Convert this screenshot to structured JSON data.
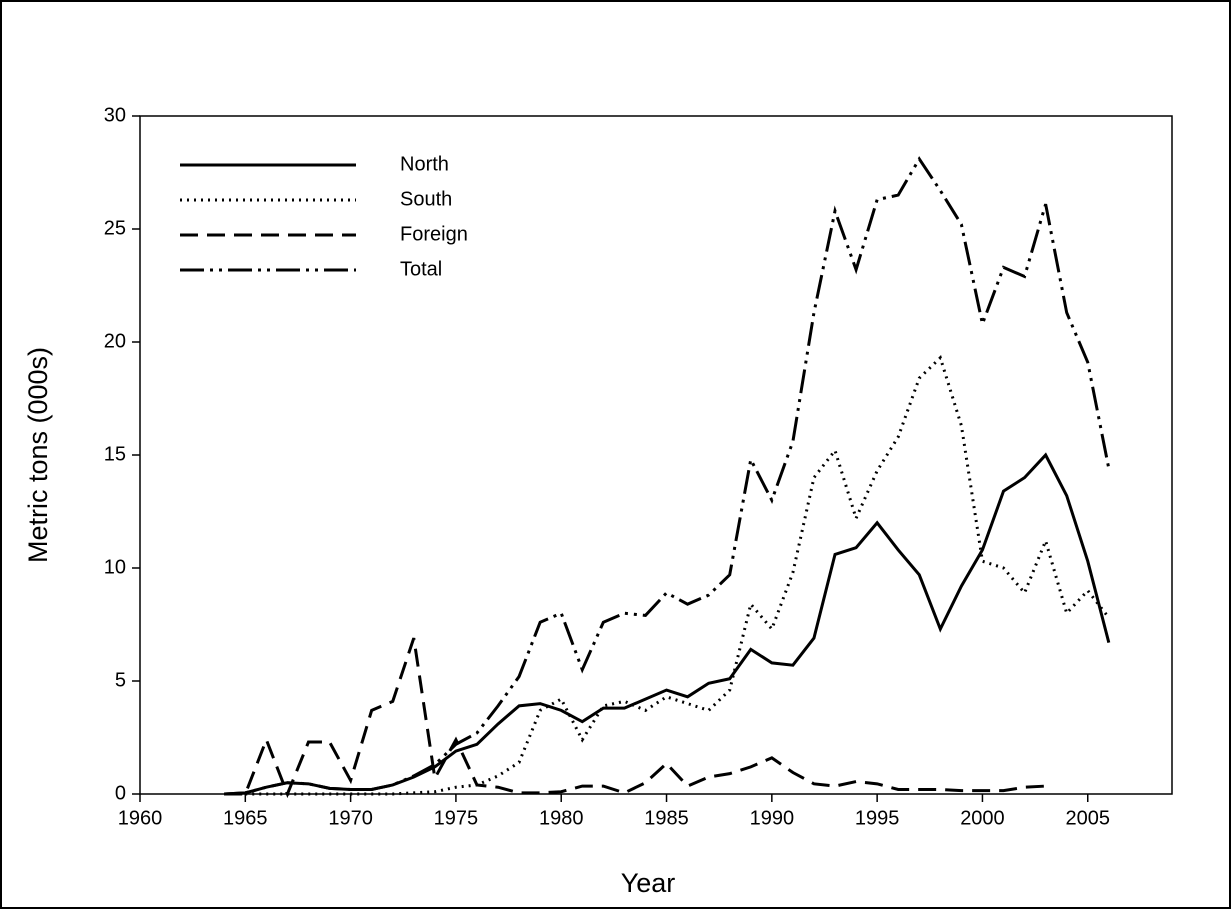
{
  "chart_data": {
    "type": "line",
    "x_label": "Year",
    "y_label": "Metric tons (000s)",
    "x": [
      1964,
      1965,
      1966,
      1967,
      1968,
      1969,
      1970,
      1971,
      1972,
      1973,
      1974,
      1975,
      1976,
      1977,
      1978,
      1979,
      1980,
      1981,
      1982,
      1983,
      1984,
      1985,
      1986,
      1987,
      1988,
      1989,
      1990,
      1991,
      1992,
      1993,
      1994,
      1995,
      1996,
      1997,
      1998,
      1999,
      2000,
      2001,
      2002,
      2003,
      2004,
      2005,
      2006
    ],
    "series": [
      {
        "name": "North",
        "color": "#000000",
        "linestyle": "solid",
        "values": [
          0,
          0.05,
          0.3,
          0.5,
          0.45,
          0.25,
          0.2,
          0.2,
          0.4,
          0.75,
          1.2,
          1.9,
          2.2,
          3.1,
          3.9,
          4.0,
          3.7,
          3.2,
          3.8,
          3.8,
          4.2,
          4.6,
          4.3,
          4.9,
          5.1,
          6.4,
          5.8,
          5.7,
          6.9,
          10.6,
          10.9,
          12.0,
          10.8,
          9.7,
          7.3,
          9.2,
          10.8,
          13.4,
          14.0,
          15.0,
          13.2,
          10.3,
          6.7
        ]
      },
      {
        "name": "South",
        "color": "#000000",
        "linestyle": "dotted",
        "values": [
          0,
          0,
          0,
          0,
          0,
          0,
          0,
          0,
          0,
          0.05,
          0.1,
          0.3,
          0.4,
          0.8,
          1.4,
          3.7,
          4.2,
          2.4,
          3.9,
          4.1,
          3.7,
          4.3,
          4.0,
          3.7,
          4.6,
          8.4,
          7.3,
          9.8,
          14.0,
          15.2,
          12.2,
          14.3,
          15.8,
          18.4,
          19.3,
          16.3,
          10.3,
          10.0,
          8.9,
          11.2,
          8.0,
          9.0,
          7.8
        ]
      },
      {
        "name": "Foreign",
        "color": "#000000",
        "linestyle": "dashed",
        "values": [
          0,
          0,
          2.4,
          0,
          2.3,
          2.3,
          0.6,
          3.7,
          4.1,
          6.9,
          0.7,
          2.4,
          0.4,
          0.3,
          0.05,
          0.05,
          0.1,
          0.35,
          0.35,
          0.05,
          0.5,
          1.35,
          0.35,
          0.75,
          0.9,
          1.2,
          1.6,
          0.95,
          0.45,
          0.35,
          0.55,
          0.45,
          0.2,
          0.2,
          0.2,
          0.15,
          0.15,
          0.15,
          0.3,
          0.35,
          null,
          null,
          null
        ]
      },
      {
        "name": "Total",
        "color": "#000000",
        "linestyle": "dashdot",
        "values": [
          0,
          0.05,
          0.3,
          0.5,
          0.45,
          0.25,
          0.2,
          0.2,
          0.4,
          0.8,
          1.3,
          2.2,
          2.7,
          3.9,
          5.2,
          7.6,
          8.0,
          5.5,
          7.6,
          8.0,
          7.9,
          8.9,
          8.4,
          8.8,
          9.7,
          14.8,
          13.0,
          15.6,
          21.3,
          25.8,
          23.2,
          26.3,
          26.5,
          28.1,
          26.7,
          25.2,
          20.8,
          23.3,
          22.9,
          26.1,
          21.3,
          19.1,
          14.4
        ]
      }
    ],
    "xlim": [
      1960,
      2009
    ],
    "ylim": [
      0,
      30
    ],
    "xticks": [
      1960,
      1965,
      1970,
      1975,
      1980,
      1985,
      1990,
      1995,
      2000,
      2005
    ],
    "yticks": [
      0,
      5,
      10,
      15,
      20,
      25,
      30
    ],
    "legend": "upper-left",
    "grid": false
  }
}
